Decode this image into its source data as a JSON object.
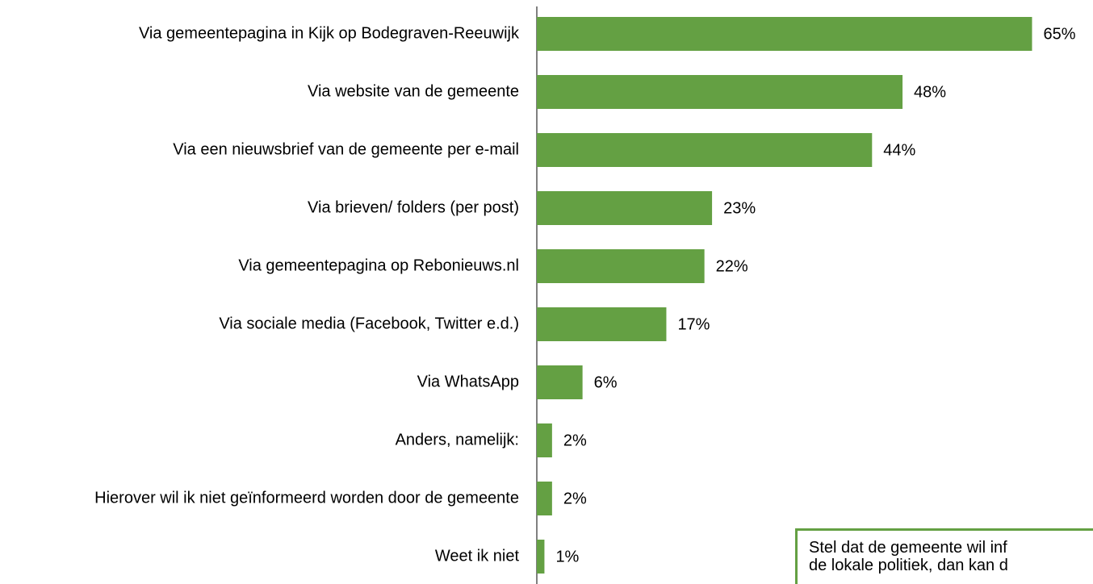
{
  "chart_data": {
    "type": "barh",
    "categories": [
      "Via gemeentepagina in Kijk op Bodegraven-Reeuwijk",
      "Via website van de gemeente",
      "Via een nieuwsbrief van de gemeente per e-mail",
      "Via brieven/ folders (per post)",
      "Via gemeentepagina op Rebonieuws.nl",
      "Via sociale media (Facebook, Twitter e.d.)",
      "Via WhatsApp",
      "Anders, namelijk:",
      "Hierover wil ik niet geïnformeerd worden door de gemeente",
      "Weet ik niet"
    ],
    "values": [
      65,
      48,
      44,
      23,
      22,
      17,
      6,
      2,
      2,
      1
    ],
    "value_labels": [
      "65%",
      "48%",
      "44%",
      "23%",
      "22%",
      "17%",
      "6%",
      "2%",
      "2%",
      "1%"
    ],
    "color": "#64a043",
    "xlim": [
      0,
      73
    ],
    "annotation": [
      "Stel dat de gemeente wil inf",
      "de lokale politiek, dan kan d"
    ]
  }
}
